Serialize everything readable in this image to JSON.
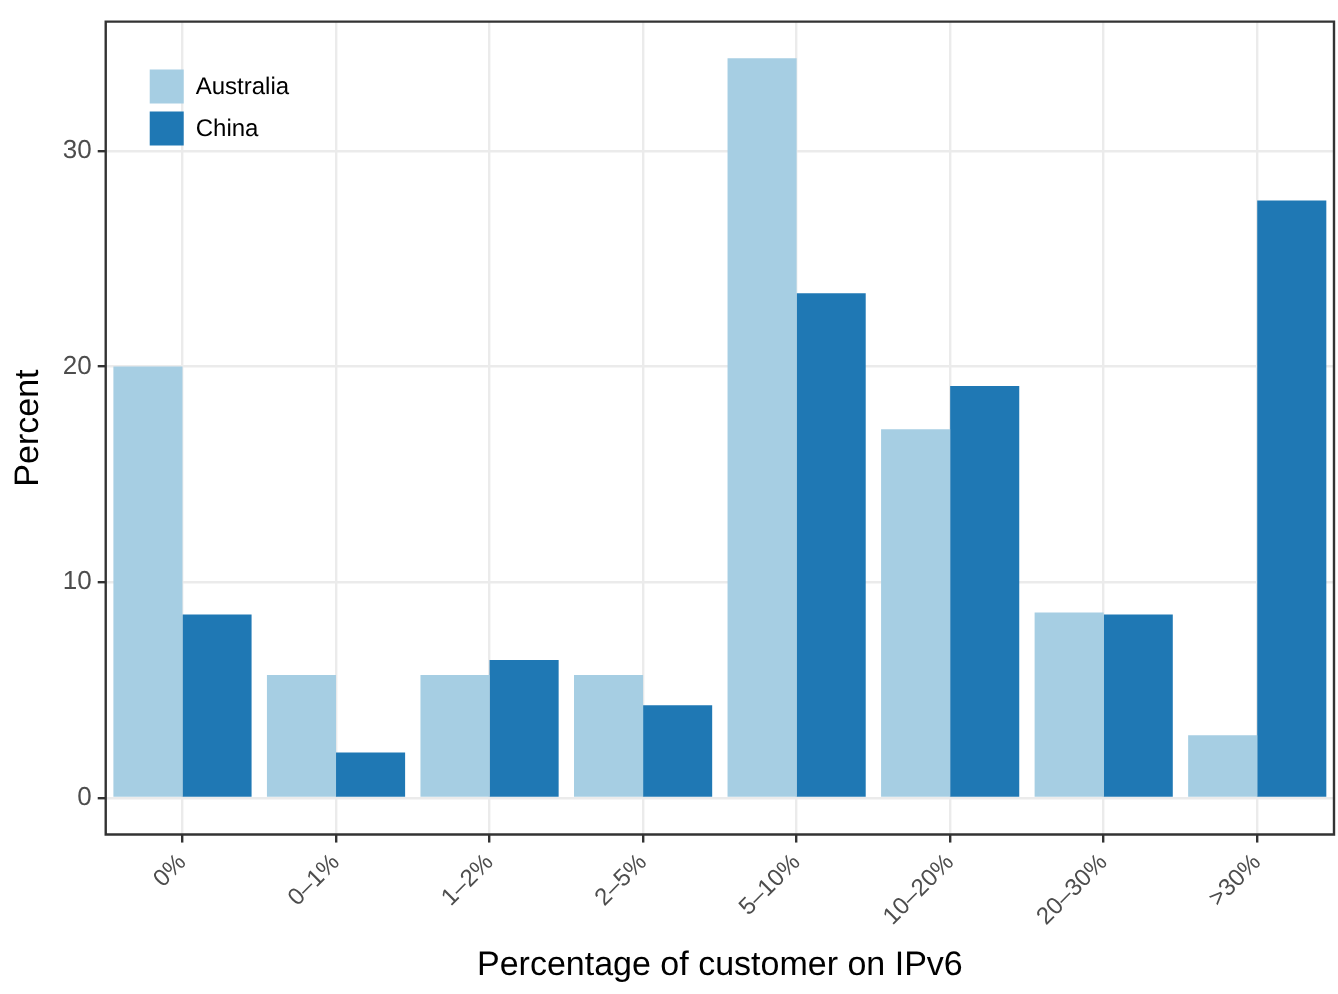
{
  "chart_data": {
    "type": "bar",
    "xlabel": "Percentage of customer on IPv6",
    "ylabel": "Percent",
    "categories": [
      "0%",
      "0–1%",
      "1–2%",
      "2–5%",
      "5–10%",
      "10–20%",
      "20–30%",
      ">30%"
    ],
    "series": [
      {
        "name": "Australia",
        "color": "#a6cee3",
        "values": [
          20.0,
          5.7,
          5.7,
          5.7,
          34.3,
          17.1,
          8.6,
          2.9
        ]
      },
      {
        "name": "China",
        "color": "#1f78b4",
        "values": [
          8.5,
          2.1,
          6.4,
          4.3,
          23.4,
          19.1,
          8.5,
          27.7
        ]
      }
    ],
    "ylim": [
      -1.7,
      36
    ],
    "yticks": [
      0,
      10,
      20,
      30
    ],
    "grid": true,
    "legend": "top left"
  }
}
